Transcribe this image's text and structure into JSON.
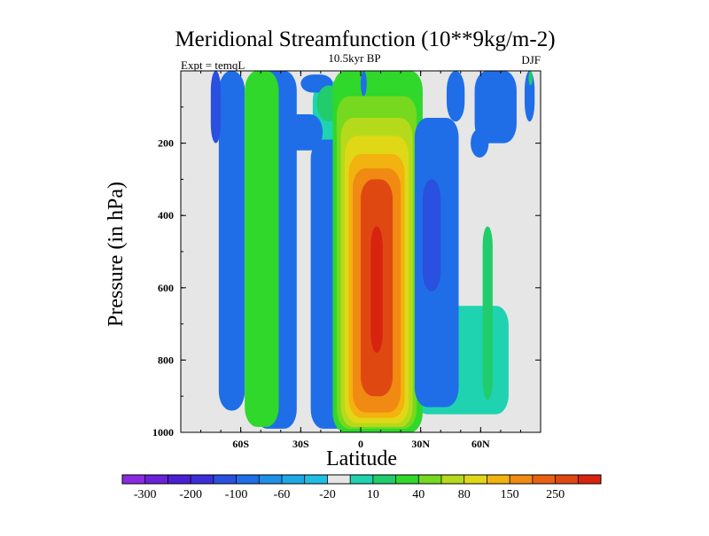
{
  "chart_data": {
    "type": "heatmap",
    "title": "Meridional Streamfunction (10**9kg/m-2)",
    "subtitle_left": "Expt = temqL",
    "subtitle_center": "10.5kyr BP",
    "subtitle_right": "DJF",
    "xlabel": "Latitude",
    "ylabel": "Pressure (in hPa)",
    "xlim": [
      -90,
      90
    ],
    "ylim": [
      1000,
      0
    ],
    "x_ticks": [
      {
        "value": -60,
        "label": "60S"
      },
      {
        "value": -30,
        "label": "30S"
      },
      {
        "value": 0,
        "label": "0"
      },
      {
        "value": 30,
        "label": "30N"
      },
      {
        "value": 60,
        "label": "60N"
      }
    ],
    "y_ticks": [
      {
        "value": 200,
        "label": "200"
      },
      {
        "value": 400,
        "label": "400"
      },
      {
        "value": 600,
        "label": "600"
      },
      {
        "value": 800,
        "label": "800"
      },
      {
        "value": 1000,
        "label": "1000"
      }
    ],
    "colorbar": {
      "colors": [
        "#8a2be2",
        "#6a22d8",
        "#4b1fd4",
        "#3b30d8",
        "#2a50e0",
        "#1f6ee8",
        "#1f90e8",
        "#1ea9e6",
        "#22bde2",
        "#e6e6e6",
        "#1fd3b0",
        "#20cc6b",
        "#2fd82a",
        "#76d81f",
        "#b5da1c",
        "#e0d817",
        "#f2b20f",
        "#f08a12",
        "#e86112",
        "#e04812",
        "#d8240f"
      ],
      "labels": [
        "-300",
        "-200",
        "-100",
        "-60",
        "-20",
        "10",
        "40",
        "80",
        "150",
        "250"
      ]
    },
    "regions": [
      {
        "level": 10,
        "lat_min": -24,
        "lat_max": 1,
        "p_min": 30,
        "p_max": 230
      },
      {
        "level": 10,
        "lat_min": 27,
        "lat_max": 74,
        "p_min": 650,
        "p_max": 950
      },
      {
        "level": 5,
        "lat_min": -71,
        "lat_max": -58,
        "p_min": 0,
        "p_max": 940
      },
      {
        "level": 4,
        "lat_min": -75,
        "lat_max": -70,
        "p_min": 0,
        "p_max": 200
      },
      {
        "level": 5,
        "lat_min": -53,
        "lat_max": -32,
        "p_min": 0,
        "p_max": 990
      },
      {
        "level": 5,
        "lat_min": -30,
        "lat_max": -14,
        "p_min": 10,
        "p_max": 60
      },
      {
        "level": 5,
        "lat_min": -38,
        "lat_max": -19,
        "p_min": 120,
        "p_max": 220
      },
      {
        "level": 5,
        "lat_min": -25,
        "lat_max": -3,
        "p_min": 190,
        "p_max": 990
      },
      {
        "level": 12,
        "lat_min": -58,
        "lat_max": -41,
        "p_min": 0,
        "p_max": 985
      },
      {
        "level": 11,
        "lat_min": -22,
        "lat_max": -10,
        "p_min": 40,
        "p_max": 140
      },
      {
        "level": 12,
        "lat_min": -14,
        "lat_max": 31,
        "p_min": 0,
        "p_max": 1000
      },
      {
        "level": 13,
        "lat_min": -12,
        "lat_max": 28,
        "p_min": 70,
        "p_max": 990
      },
      {
        "level": 14,
        "lat_min": -10,
        "lat_max": 26,
        "p_min": 130,
        "p_max": 985
      },
      {
        "level": 15,
        "lat_min": -8,
        "lat_max": 24,
        "p_min": 180,
        "p_max": 975
      },
      {
        "level": 16,
        "lat_min": -6,
        "lat_max": 22,
        "p_min": 230,
        "p_max": 960
      },
      {
        "level": 17,
        "lat_min": -4,
        "lat_max": 20,
        "p_min": 270,
        "p_max": 945
      },
      {
        "level": 19,
        "lat_min": 0,
        "lat_max": 16,
        "p_min": 300,
        "p_max": 900
      },
      {
        "level": 20,
        "lat_min": 5,
        "lat_max": 11,
        "p_min": 430,
        "p_max": 780
      },
      {
        "level": 5,
        "lat_min": 27,
        "lat_max": 49,
        "p_min": 130,
        "p_max": 930
      },
      {
        "level": 4,
        "lat_min": 31,
        "lat_max": 40,
        "p_min": 300,
        "p_max": 610
      },
      {
        "level": 5,
        "lat_min": 43,
        "lat_max": 52,
        "p_min": 0,
        "p_max": 140
      },
      {
        "level": 5,
        "lat_min": 57,
        "lat_max": 78,
        "p_min": 0,
        "p_max": 200
      },
      {
        "level": 5,
        "lat_min": 55,
        "lat_max": 64,
        "p_min": 160,
        "p_max": 240
      },
      {
        "level": 5,
        "lat_min": 82,
        "lat_max": 87,
        "p_min": 0,
        "p_max": 140
      },
      {
        "level": 5,
        "lat_min": 0,
        "lat_max": 3,
        "p_min": 0,
        "p_max": 70
      },
      {
        "level": 11,
        "lat_min": 61,
        "lat_max": 66,
        "p_min": 430,
        "p_max": 910
      },
      {
        "level": 11,
        "lat_min": 84,
        "lat_max": 86,
        "p_min": 0,
        "p_max": 40
      }
    ]
  }
}
